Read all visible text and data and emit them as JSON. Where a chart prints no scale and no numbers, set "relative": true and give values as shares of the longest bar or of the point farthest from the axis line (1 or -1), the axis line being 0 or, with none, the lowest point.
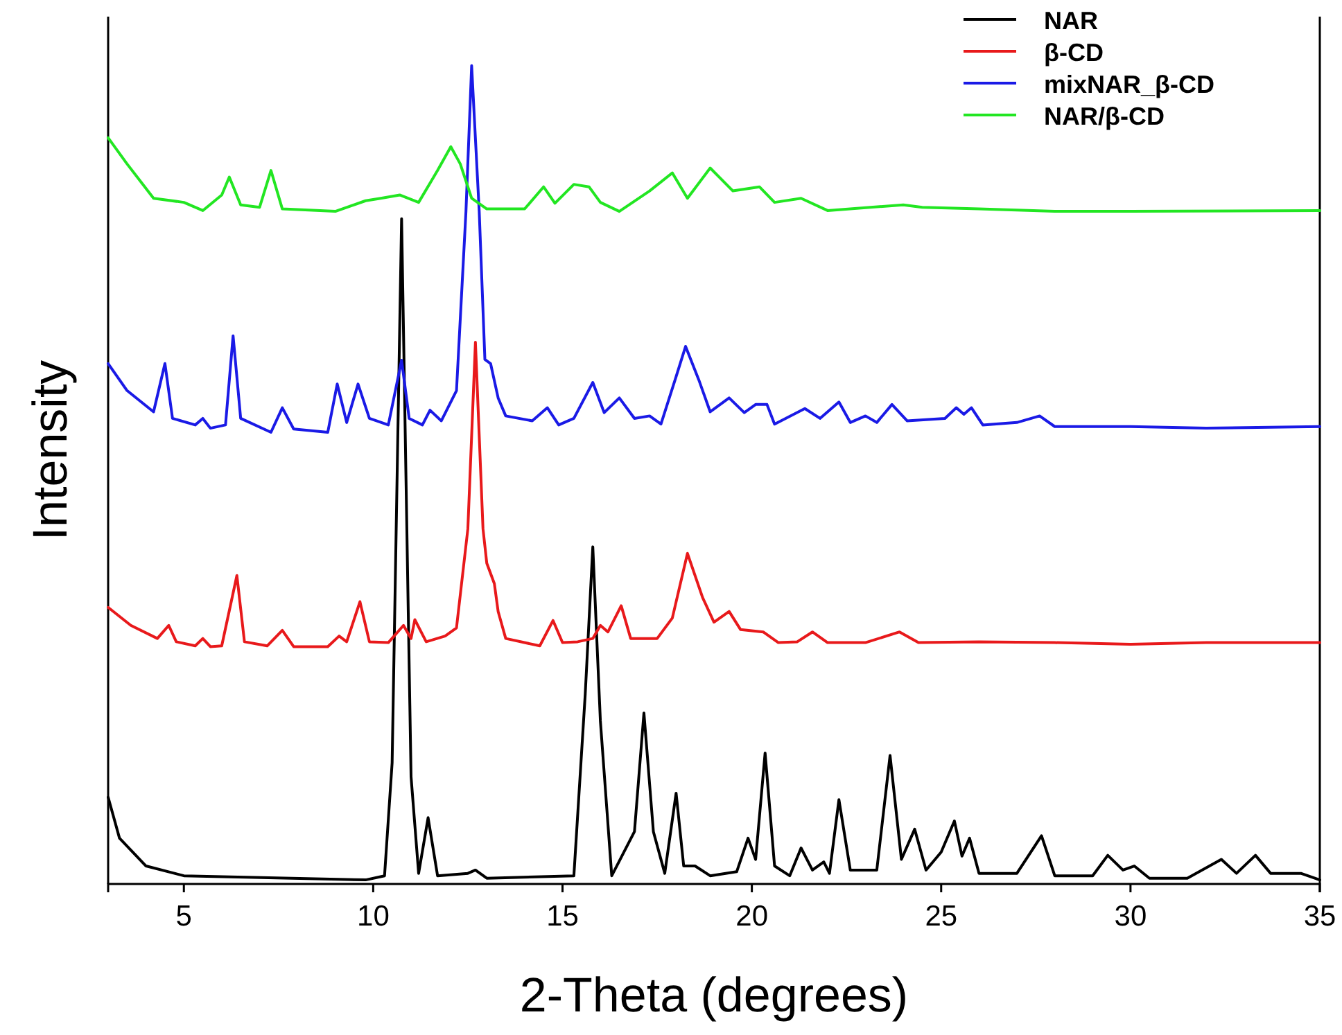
{
  "chart_data": {
    "type": "line",
    "xlabel": "2-Theta (degrees)",
    "ylabel": "Intensity",
    "relative": true,
    "xlim": [
      3,
      35
    ],
    "xticks": [
      5,
      10,
      15,
      20,
      25,
      30,
      35
    ],
    "legend": "top right",
    "grid": false,
    "marker": "none",
    "line_style": "solid",
    "series": [
      {
        "name": "NAR",
        "color": "#000000",
        "x": [
          3,
          3.3,
          4,
          5,
          9.8,
          10.3,
          10.5,
          10.75,
          11,
          11.2,
          11.45,
          11.7,
          12.5,
          12.7,
          13,
          15.3,
          15.6,
          15.8,
          16,
          16.3,
          16.9,
          17.15,
          17.4,
          17.7,
          18,
          18.2,
          18.5,
          18.9,
          19.6,
          19.9,
          20.1,
          20.35,
          20.6,
          21,
          21.3,
          21.6,
          21.9,
          22.05,
          22.3,
          22.6,
          23.3,
          23.65,
          23.95,
          24.3,
          24.6,
          25,
          25.35,
          25.55,
          25.75,
          26,
          27,
          27.65,
          28,
          29,
          29.4,
          29.8,
          30.1,
          30.5,
          31.5,
          32.4,
          32.8,
          33.3,
          33.7,
          34.5,
          35
        ],
        "values": [
          0.106,
          0.056,
          0.022,
          0.01,
          0.005,
          0.01,
          0.148,
          0.813,
          0.131,
          0.013,
          0.081,
          0.01,
          0.013,
          0.017,
          0.007,
          0.01,
          0.232,
          0.412,
          0.199,
          0.01,
          0.064,
          0.209,
          0.064,
          0.013,
          0.111,
          0.022,
          0.022,
          0.01,
          0.015,
          0.056,
          0.03,
          0.16,
          0.022,
          0.01,
          0.044,
          0.017,
          0.027,
          0.013,
          0.103,
          0.017,
          0.017,
          0.157,
          0.03,
          0.067,
          0.017,
          0.039,
          0.077,
          0.034,
          0.056,
          0.013,
          0.013,
          0.059,
          0.01,
          0.01,
          0.035,
          0.017,
          0.022,
          0.007,
          0.007,
          0.03,
          0.013,
          0.035,
          0.013,
          0.013,
          0.005
        ]
      },
      {
        "name": "β-CD",
        "color": "#e8191b",
        "x": [
          3,
          3.6,
          4.3,
          4.6,
          4.8,
          5.3,
          5.5,
          5.7,
          6,
          6.4,
          6.6,
          7.2,
          7.6,
          7.9,
          8.8,
          9.1,
          9.3,
          9.65,
          9.9,
          10.4,
          10.8,
          11,
          11.1,
          11.4,
          11.9,
          12.2,
          12.5,
          12.7,
          12.9,
          13,
          13.2,
          13.3,
          13.5,
          14.4,
          14.75,
          15,
          15.4,
          15.8,
          16,
          16.2,
          16.55,
          16.8,
          17.5,
          17.9,
          18.3,
          18.7,
          19,
          19.4,
          19.7,
          20.3,
          20.7,
          21.2,
          21.6,
          22,
          23,
          23.9,
          24.4,
          26,
          28,
          30,
          32,
          35
        ],
        "values": [
          0.338,
          0.316,
          0.3,
          0.316,
          0.296,
          0.291,
          0.3,
          0.29,
          0.291,
          0.377,
          0.296,
          0.291,
          0.31,
          0.29,
          0.29,
          0.303,
          0.296,
          0.345,
          0.296,
          0.295,
          0.316,
          0.3,
          0.323,
          0.296,
          0.303,
          0.313,
          0.434,
          0.662,
          0.434,
          0.392,
          0.367,
          0.333,
          0.3,
          0.291,
          0.322,
          0.295,
          0.296,
          0.3,
          0.316,
          0.308,
          0.34,
          0.3,
          0.3,
          0.325,
          0.404,
          0.35,
          0.32,
          0.333,
          0.311,
          0.308,
          0.295,
          0.296,
          0.308,
          0.295,
          0.295,
          0.308,
          0.295,
          0.296,
          0.295,
          0.293,
          0.295,
          0.295
        ]
      },
      {
        "name": "mixNAR_β-CD",
        "color": "#1a1ae6",
        "x": [
          3,
          3.5,
          4.2,
          4.5,
          4.7,
          5.3,
          5.5,
          5.7,
          6.1,
          6.3,
          6.5,
          7.3,
          7.6,
          7.9,
          8.8,
          9.05,
          9.3,
          9.6,
          9.9,
          10.4,
          10.75,
          10.95,
          11.3,
          11.5,
          11.8,
          12.2,
          12.45,
          12.6,
          12.8,
          12.95,
          13.1,
          13.3,
          13.5,
          14.2,
          14.6,
          14.9,
          15.3,
          15.8,
          16.1,
          16.5,
          16.9,
          17.3,
          17.6,
          18,
          18.25,
          18.6,
          18.9,
          19.4,
          19.8,
          20.1,
          20.4,
          20.6,
          21.4,
          21.8,
          22.3,
          22.6,
          23,
          23.3,
          23.7,
          24.1,
          25.1,
          25.4,
          25.6,
          25.8,
          26.1,
          27,
          27.6,
          28,
          30,
          32,
          35
        ],
        "values": [
          0.636,
          0.603,
          0.577,
          0.636,
          0.569,
          0.561,
          0.569,
          0.557,
          0.561,
          0.67,
          0.569,
          0.552,
          0.582,
          0.556,
          0.552,
          0.611,
          0.564,
          0.611,
          0.569,
          0.561,
          0.64,
          0.569,
          0.561,
          0.579,
          0.566,
          0.603,
          0.822,
          1,
          0.822,
          0.641,
          0.636,
          0.594,
          0.572,
          0.566,
          0.582,
          0.561,
          0.569,
          0.613,
          0.576,
          0.594,
          0.569,
          0.572,
          0.562,
          0.62,
          0.657,
          0.616,
          0.577,
          0.594,
          0.576,
          0.586,
          0.586,
          0.562,
          0.581,
          0.569,
          0.589,
          0.564,
          0.572,
          0.564,
          0.586,
          0.566,
          0.569,
          0.582,
          0.574,
          0.582,
          0.561,
          0.564,
          0.572,
          0.559,
          0.559,
          0.557,
          0.559
        ]
      },
      {
        "name": "NAR/β-CD",
        "color": "#22e622",
        "x": [
          3,
          3.5,
          4.2,
          5,
          5.5,
          6,
          6.2,
          6.5,
          7,
          7.3,
          7.6,
          9,
          9.8,
          10.2,
          10.7,
          11.2,
          11.7,
          12.05,
          12.3,
          12.6,
          13,
          14,
          14.5,
          14.8,
          15.3,
          15.7,
          16,
          16.5,
          17.3,
          17.9,
          18.3,
          18.9,
          19.5,
          20.2,
          20.6,
          21.3,
          22,
          24,
          24.5,
          26,
          28,
          30,
          35
        ],
        "values": [
          0.912,
          0.88,
          0.838,
          0.833,
          0.823,
          0.842,
          0.864,
          0.83,
          0.827,
          0.872,
          0.825,
          0.822,
          0.835,
          0.838,
          0.842,
          0.833,
          0.872,
          0.901,
          0.88,
          0.838,
          0.825,
          0.825,
          0.852,
          0.832,
          0.855,
          0.852,
          0.833,
          0.822,
          0.847,
          0.869,
          0.838,
          0.875,
          0.847,
          0.852,
          0.833,
          0.838,
          0.823,
          0.83,
          0.827,
          0.825,
          0.822,
          0.822,
          0.823
        ]
      }
    ]
  }
}
